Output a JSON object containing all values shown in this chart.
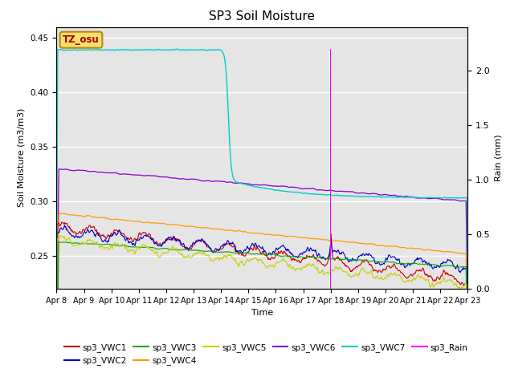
{
  "title": "SP3 Soil Moisture",
  "xlabel": "Time",
  "ylabel_left": "Soil Moisture (m3/m3)",
  "ylabel_right": "Rain (mm)",
  "ylim_left": [
    0.22,
    0.46
  ],
  "ylim_right": [
    0.0,
    2.4
  ],
  "xtick_labels": [
    "Apr 8",
    "Apr 9",
    "Apr 10",
    "Apr 11",
    "Apr 12",
    "Apr 13",
    "Apr 14",
    "Apr 15",
    "Apr 16",
    "Apr 17",
    "Apr 18",
    "Apr 19",
    "Apr 20",
    "Apr 21",
    "Apr 22",
    "Apr 23"
  ],
  "background_color": "#e5e5e5",
  "label_box_color": "#f5e070",
  "label_box_text": "TZ_osu",
  "colors": {
    "sp3_VWC1": "#cc0000",
    "sp3_VWC2": "#0000cc",
    "sp3_VWC3": "#00aa00",
    "sp3_VWC4": "#ff9900",
    "sp3_VWC5": "#cccc00",
    "sp3_VWC6": "#8800cc",
    "sp3_VWC7": "#00cccc",
    "sp3_Rain": "#ff00ff"
  },
  "figsize": [
    6.4,
    4.8
  ],
  "dpi": 100
}
